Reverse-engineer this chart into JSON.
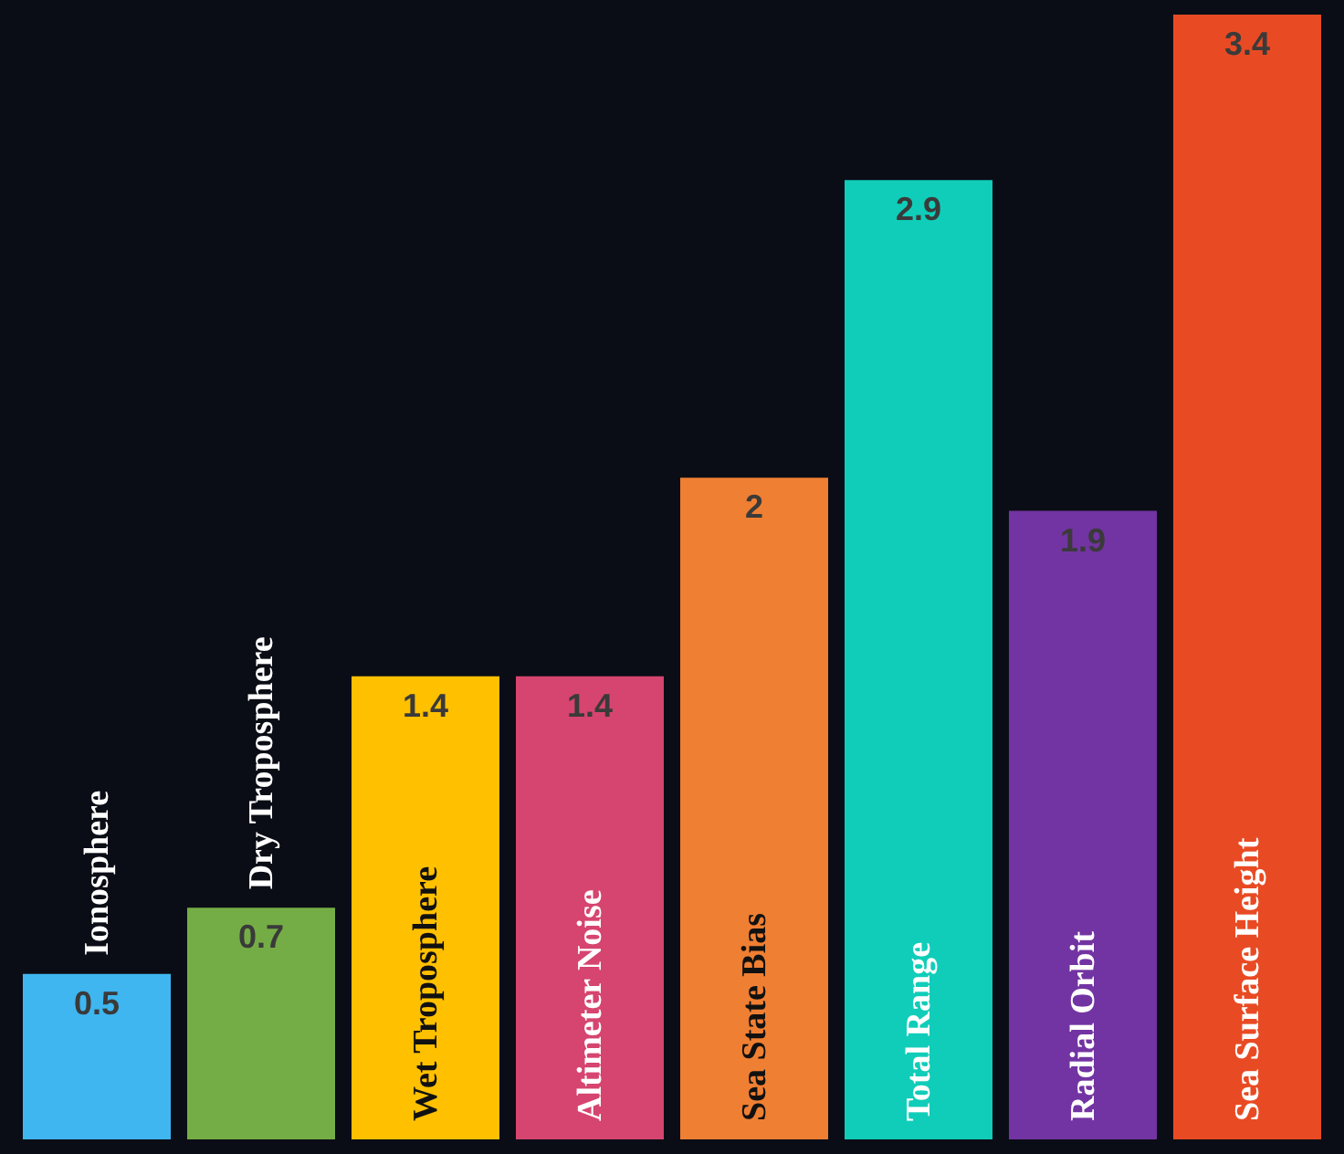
{
  "chart_data": {
    "type": "bar",
    "categories": [
      "Ionosphere",
      "Dry Troposphere",
      "Wet Troposphere",
      "Altimeter Noise",
      "Sea State Bias",
      "Total Range",
      "Radial Orbit",
      "Sea Surface Height"
    ],
    "values": [
      0.5,
      0.7,
      1.4,
      1.4,
      2,
      2.9,
      1.9,
      3.4
    ],
    "colors": [
      "#3fb6f0",
      "#74ad45",
      "#ffc000",
      "#d6456f",
      "#ef7f32",
      "#10cdb9",
      "#7234a2",
      "#e84b24"
    ],
    "data_labels": true
  }
}
